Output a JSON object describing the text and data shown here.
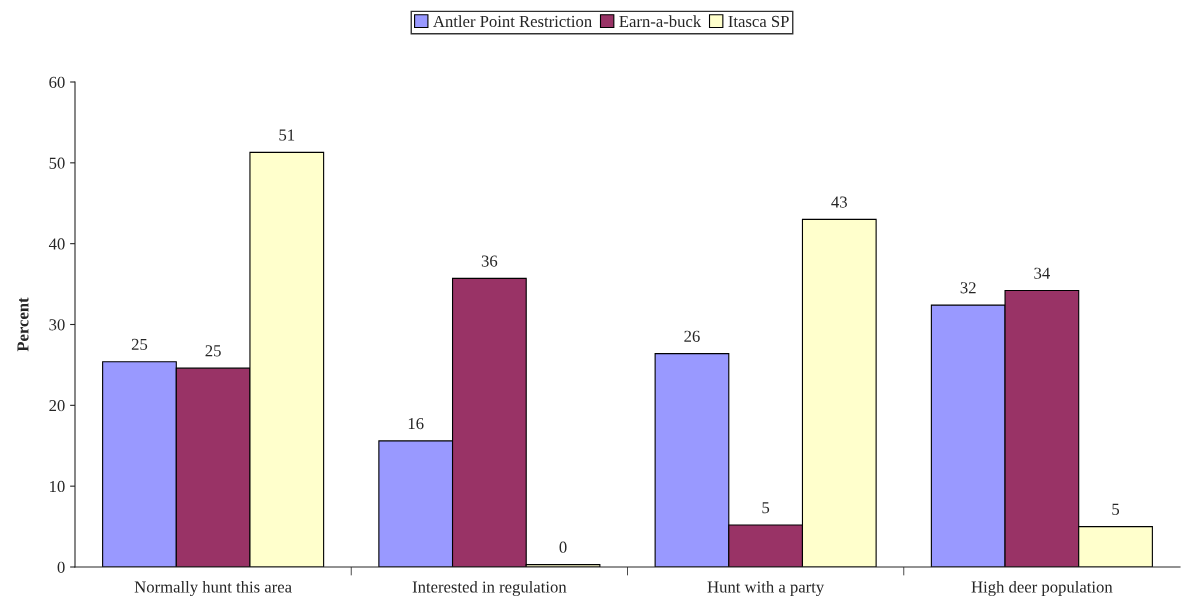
{
  "chart_data": {
    "type": "bar",
    "ylabel": "Percent",
    "categories": [
      "Normally hunt this area",
      "Interested in regulation",
      "Hunt with a party",
      "High deer population"
    ],
    "series": [
      {
        "name": "Antler Point Restriction",
        "color": "#9999ff",
        "values": [
          25.4,
          15.6,
          26.4,
          32.4
        ],
        "value_labels": [
          "25",
          "16",
          "26",
          "32"
        ]
      },
      {
        "name": "Earn-a-buck",
        "color": "#993366",
        "values": [
          24.6,
          35.7,
          5.2,
          34.2
        ],
        "value_labels": [
          "25",
          "36",
          "5",
          "34"
        ]
      },
      {
        "name": "Itasca SP",
        "color": "#ffffcc",
        "values": [
          51.3,
          0.3,
          43.0,
          5.0
        ],
        "value_labels": [
          "51",
          "0",
          "43",
          "5"
        ]
      }
    ],
    "ylim": [
      0,
      60
    ],
    "yticks": [
      0,
      10,
      20,
      30,
      40,
      50,
      60
    ],
    "grid": false,
    "legend": "top"
  }
}
